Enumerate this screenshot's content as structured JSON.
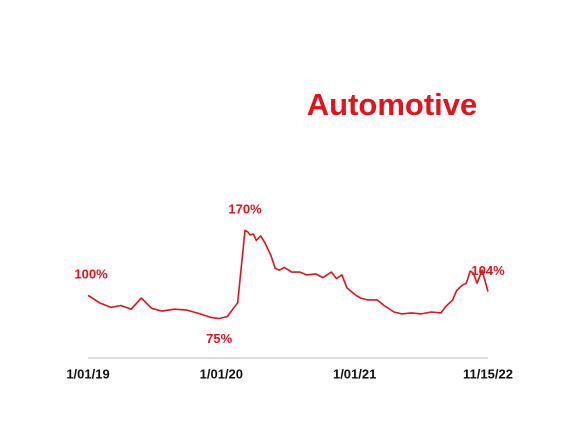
{
  "chart_data": {
    "type": "line",
    "title": "Automotive",
    "x": [
      "1/01/19",
      "2/01/19",
      "3/05/19",
      "4/01/19",
      "4/29/19",
      "5/27/19",
      "6/24/19",
      "7/22/19",
      "8/26/19",
      "9/29/19",
      "11/04/19",
      "12/05/19",
      "12/26/19",
      "1/17/20",
      "2/15/20",
      "3/06/20",
      "3/14/20",
      "3/20/20",
      "3/29/20",
      "4/06/20",
      "4/18/20",
      "4/29/20",
      "5/16/20",
      "5/28/20",
      "6/08/20",
      "6/22/20",
      "7/12/20",
      "8/04/20",
      "8/22/20",
      "9/16/20",
      "10/06/20",
      "10/29/20",
      "11/12/20",
      "11/27/20",
      "12/11/20",
      "1/01/21",
      "1/31/21",
      "3/07/21",
      "4/26/21",
      "6/01/21",
      "7/21/21",
      "8/30/21",
      "10/19/21",
      "12/08/21",
      "1/28/22",
      "3/19/22",
      "4/13/22",
      "5/18/22",
      "6/07/22",
      "7/07/22",
      "7/27/22",
      "8/16/22",
      "8/31/22",
      "9/20/22",
      "10/16/22",
      "11/15/22"
    ],
    "series": [
      {
        "name": "Automotive",
        "color": "#e3121b",
        "values": [
          100,
          92,
          87,
          89,
          85,
          97,
          86,
          83,
          85,
          84,
          80,
          76,
          75,
          77,
          92,
          170,
          168,
          165,
          166,
          159,
          164,
          157,
          143,
          129,
          127,
          130,
          125,
          125,
          122,
          123,
          119,
          125,
          118,
          122,
          108,
          101,
          97,
          95,
          95,
          89,
          82,
          80,
          81,
          80,
          82,
          81,
          88,
          95,
          105,
          111,
          113,
          126,
          124,
          113,
          127,
          104
        ],
        "value_labels": [
          "100%",
          null,
          null,
          null,
          null,
          null,
          null,
          null,
          null,
          null,
          null,
          null,
          "75%",
          null,
          null,
          "170%",
          null,
          null,
          null,
          null,
          null,
          null,
          null,
          null,
          null,
          null,
          null,
          null,
          null,
          null,
          null,
          null,
          null,
          null,
          null,
          null,
          null,
          null,
          null,
          null,
          null,
          null,
          null,
          null,
          null,
          null,
          null,
          null,
          null,
          null,
          null,
          null,
          null,
          null,
          null,
          "104%"
        ]
      }
    ],
    "xlim": [
      "1/01/19",
      "11/15/22"
    ],
    "xticks": [
      "1/01/19",
      "1/01/20",
      "1/01/21",
      "11/15/22"
    ],
    "ylim": [
      40,
      180
    ]
  }
}
